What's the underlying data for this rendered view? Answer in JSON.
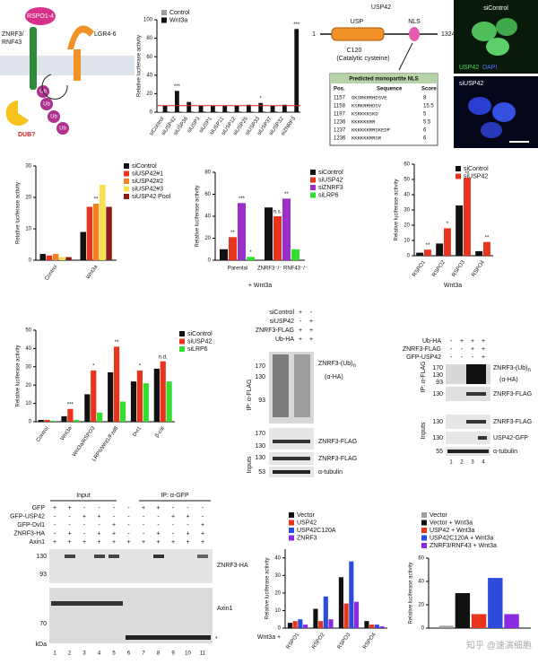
{
  "schematic": {
    "receptor": [
      "ZNRF3/",
      "RNF43"
    ],
    "ligand": "RSPO1-4",
    "co_receptor": "LGR4-6",
    "ubiquitin": [
      "Ub",
      "Ub",
      "Ub",
      "Ub"
    ],
    "dub": "DUB?"
  },
  "domain": {
    "protein": "USP42",
    "domain": "USP",
    "nls": "NLS",
    "start": 1,
    "end": 1324,
    "residue": "C120",
    "residue_note": "(Catalytic cysteine)"
  },
  "nls_table": {
    "title": "Predicted monopartite NLS",
    "headers": [
      "Pos.",
      "Sequence",
      "Score"
    ],
    "rows": [
      [
        1157,
        "GKSRKRRHDSVE",
        8
      ],
      [
        1158,
        "KSRKRRHDSV",
        15.5
      ],
      [
        1197,
        "KSKKKKSKD",
        5
      ],
      [
        1236,
        "KKKKKKRR",
        5.5
      ],
      [
        1237,
        "KKKKKKRRSKEDP",
        6
      ],
      [
        1236,
        "KKKKKKRRSR",
        6
      ]
    ]
  },
  "microscopy": {
    "top": "siControl",
    "stain1": "USP42",
    "stain2": "DAPI",
    "bottom": "siUSP42"
  },
  "chart_data": [
    {
      "type": "bar",
      "y_label": "Relative luciferase activity",
      "categories": [
        "siControl",
        "siUSP42",
        "siUSP36",
        "siUSP3",
        "siUSP1",
        "siUSP11",
        "siUSP12",
        "siUSP25",
        "siUSP33",
        "siUSP37",
        "siUSP32",
        "siZNRF3"
      ],
      "series": [
        {
          "name": "Control",
          "color": "#9e9e9e",
          "values": [
            0.5,
            0.6,
            0.5,
            0.5,
            0.5,
            0.5,
            0.5,
            0.5,
            0.5,
            0.5,
            0.5,
            1
          ]
        },
        {
          "name": "Wnt3a",
          "color": "#111111",
          "values": [
            7,
            23,
            11,
            7,
            7,
            7,
            7,
            8,
            10,
            7,
            8,
            90
          ]
        }
      ],
      "ylim": [
        0,
        100
      ],
      "yticks": [
        0,
        20,
        40,
        60,
        80,
        100
      ],
      "reference_line": 7,
      "reference_color": "#e02020",
      "annotations": [
        "***",
        "*",
        "***"
      ]
    },
    {
      "type": "bar",
      "y_label": "Relative luciferase activity",
      "categories": [
        "Control",
        "Wnt3a"
      ],
      "series": [
        {
          "name": "siControl",
          "color": "#111111",
          "values": [
            2,
            9
          ]
        },
        {
          "name": "siUSP42#1",
          "color": "#e8341c",
          "values": [
            1.5,
            17
          ]
        },
        {
          "name": "siUSP42#2",
          "color": "#f58220",
          "values": [
            2,
            18
          ]
        },
        {
          "name": "siUSP42#3",
          "color": "#f7e04b",
          "values": [
            1,
            24
          ]
        },
        {
          "name": "siUSP42 Pool",
          "color": "#8b1a1a",
          "values": [
            1,
            17
          ]
        }
      ],
      "ylim": [
        0,
        30
      ],
      "yticks": [
        0,
        10,
        20,
        30
      ],
      "annotations": [
        "**"
      ]
    },
    {
      "type": "bar",
      "y_label": "Relative luciferase activity",
      "x_label": "+ Wnt3a",
      "categories": [
        "Parental",
        "ZNRF3⁻/⁻ RNF43⁻/⁻"
      ],
      "series": [
        {
          "name": "siControl",
          "color": "#111111",
          "values": [
            10,
            48
          ]
        },
        {
          "name": "siUSP42",
          "color": "#e8341c",
          "values": [
            21,
            40
          ]
        },
        {
          "name": "siZNRF3",
          "color": "#9b30c8",
          "values": [
            52,
            56
          ]
        },
        {
          "name": "siLRP6",
          "color": "#33dd33",
          "values": [
            3,
            10
          ]
        }
      ],
      "ylim": [
        0,
        80
      ],
      "yticks": [
        0,
        20,
        40,
        60,
        80
      ],
      "annotations": [
        "**",
        "***",
        "*",
        "n.s.",
        "**"
      ]
    },
    {
      "type": "bar",
      "y_label": "Relative luciferase activity",
      "x_label": "Wnt3a",
      "categories": [
        "RSPO1",
        "RSPO2",
        "RSPO3",
        "RSPO4"
      ],
      "series": [
        {
          "name": "siControl",
          "color": "#111111",
          "values": [
            2,
            8,
            33,
            3
          ]
        },
        {
          "name": "siUSP42",
          "color": "#e8341c",
          "values": [
            4,
            18,
            51,
            9
          ]
        }
      ],
      "ylim": [
        0,
        60
      ],
      "yticks": [
        0,
        10,
        20,
        30,
        40,
        50,
        60
      ],
      "annotations": [
        "**",
        "*",
        "**",
        "**"
      ]
    },
    {
      "type": "bar",
      "y_label": "Relative luciferase activity",
      "categories": [
        "Control",
        "Wnt3a",
        "Wnt3a/RSPO3",
        "LRP6/Wnt1/Fzd8",
        "Dvl1",
        "β-cat"
      ],
      "series": [
        {
          "name": "siControl",
          "color": "#111111",
          "values": [
            1,
            3,
            15,
            27,
            22,
            29
          ]
        },
        {
          "name": "siUSP42",
          "color": "#e8341c",
          "values": [
            1,
            7,
            28,
            41,
            28,
            33
          ]
        },
        {
          "name": "siLRP6",
          "color": "#33dd33",
          "values": [
            0.5,
            1,
            5,
            11,
            21,
            22
          ]
        }
      ],
      "ylim": [
        0,
        50
      ],
      "yticks": [
        0,
        10,
        20,
        30,
        40,
        50
      ],
      "annotations": [
        "***",
        "*",
        "**",
        "*",
        "n.d."
      ]
    },
    {
      "type": "bar",
      "y_label": "Relative luciferase activity",
      "x_label": "Wnt3a +",
      "categories": [
        "RSPO1",
        "RSPO2",
        "RSPO3",
        "RSPO4"
      ],
      "series": [
        {
          "name": "Vector",
          "color": "#111111",
          "values": [
            3,
            11,
            29,
            4
          ]
        },
        {
          "name": "USP42",
          "color": "#e8341c",
          "values": [
            4,
            4,
            14,
            2
          ]
        },
        {
          "name": "USP42C120A",
          "color": "#2b4bdb",
          "values": [
            5,
            18,
            38,
            2
          ]
        },
        {
          "name": "ZNRF3",
          "color": "#8a2be2",
          "values": [
            2,
            5,
            15,
            1
          ]
        }
      ],
      "ylim": [
        0,
        45
      ],
      "yticks": [
        0,
        10,
        20,
        30,
        40
      ]
    },
    {
      "type": "bar",
      "y_label": "Relative luciferase activity",
      "series": [
        {
          "name": "Vector",
          "color": "#9e9e9e",
          "values": [
            2
          ]
        },
        {
          "name": "Vector + Wnt3a",
          "color": "#111111",
          "values": [
            30
          ]
        },
        {
          "name": "USP42 + Wnt3a",
          "color": "#e8341c",
          "values": [
            12
          ]
        },
        {
          "name": "USP42C120A + Wnt3a",
          "color": "#2b4bdb",
          "values": [
            43
          ]
        },
        {
          "name": "ZNRF3/RNF43 + Wnt3a",
          "color": "#8a2be2",
          "values": [
            12
          ]
        }
      ],
      "ylim": [
        0,
        60
      ],
      "yticks": [
        0,
        20,
        40,
        60
      ]
    }
  ],
  "blots": [
    {
      "conditions": [
        {
          "name": "siControl",
          "signs": [
            "+",
            "-"
          ]
        },
        {
          "name": "siUSP42",
          "signs": [
            "-",
            "+"
          ]
        },
        {
          "name": "ZNRF3-FLAG",
          "signs": [
            "+",
            "+"
          ]
        },
        {
          "name": "Ub-HA",
          "signs": [
            "+",
            "+"
          ]
        }
      ],
      "labels": {
        "ip": "IP: α-FLAG",
        "inputs": "Inputs",
        "ub": "ZNRF3-(Ub)",
        "sub": "n",
        "ab": "(α-HA)",
        "flag": "ZNRF3-FLAG",
        "flag_in": "ZNRF3-FLAG",
        "tub": "α-tubulin"
      },
      "markers": [
        170,
        130,
        93,
        170,
        130,
        130,
        53
      ]
    },
    {
      "conditions": [
        {
          "name": "Ub-HA",
          "signs": [
            "-",
            "+",
            "+",
            "+"
          ]
        },
        {
          "name": "ZNRF3-FLAG",
          "signs": [
            "-",
            "-",
            "+",
            "+"
          ]
        },
        {
          "name": "GFP-USP42",
          "signs": [
            "-",
            "-",
            "-",
            "+"
          ]
        }
      ],
      "lanes": [
        1,
        2,
        3,
        4
      ],
      "labels": {
        "ip": "IP: α-FLAG",
        "inputs": "Inputs",
        "ub": "ZNRF3-(Ub)",
        "sub": "n",
        "ab": "(α-HA)",
        "flag": "ZNRF3-FLAG",
        "flag_in": "ZNRF3-FLAG",
        "gfp": "USP42-GFP",
        "tub": "α-tubulin"
      },
      "markers": [
        170,
        130,
        93,
        130,
        130,
        130,
        55
      ]
    },
    {
      "conditions": [
        {
          "name": "GFP",
          "signs": [
            "+",
            "+",
            "-",
            "-",
            "-",
            "-",
            "+",
            "+",
            "-",
            "-",
            "-"
          ]
        },
        {
          "name": "GFP-USP42",
          "signs": [
            "-",
            "-",
            "+",
            "+",
            "-",
            "-",
            "-",
            "-",
            "+",
            "+",
            "-"
          ]
        },
        {
          "name": "GFP-Dvl1",
          "signs": [
            "-",
            "-",
            "-",
            "-",
            "+",
            "-",
            "-",
            "-",
            "-",
            "-",
            "+"
          ]
        },
        {
          "name": "ZNRF3-HA",
          "signs": [
            "-",
            "+",
            "-",
            "+",
            "+",
            "-",
            "-",
            "+",
            "-",
            "+",
            "+"
          ]
        },
        {
          "name": "Axin1",
          "signs": [
            "+",
            "+",
            "+",
            "+",
            "+",
            "+",
            "+",
            "+",
            "+",
            "+",
            "+"
          ]
        }
      ],
      "lanes": [
        1,
        2,
        3,
        4,
        5,
        6,
        7,
        8,
        9,
        10,
        11
      ],
      "labels": {
        "input": "Input",
        "ip": "IP: α-GFP",
        "znrf3": "ZNRF3-HA",
        "axin": "Axin1",
        "kda": "kDa",
        "star": "*"
      },
      "markers": [
        130,
        93,
        70
      ]
    }
  ],
  "watermark": "知乎 @速演细胞"
}
